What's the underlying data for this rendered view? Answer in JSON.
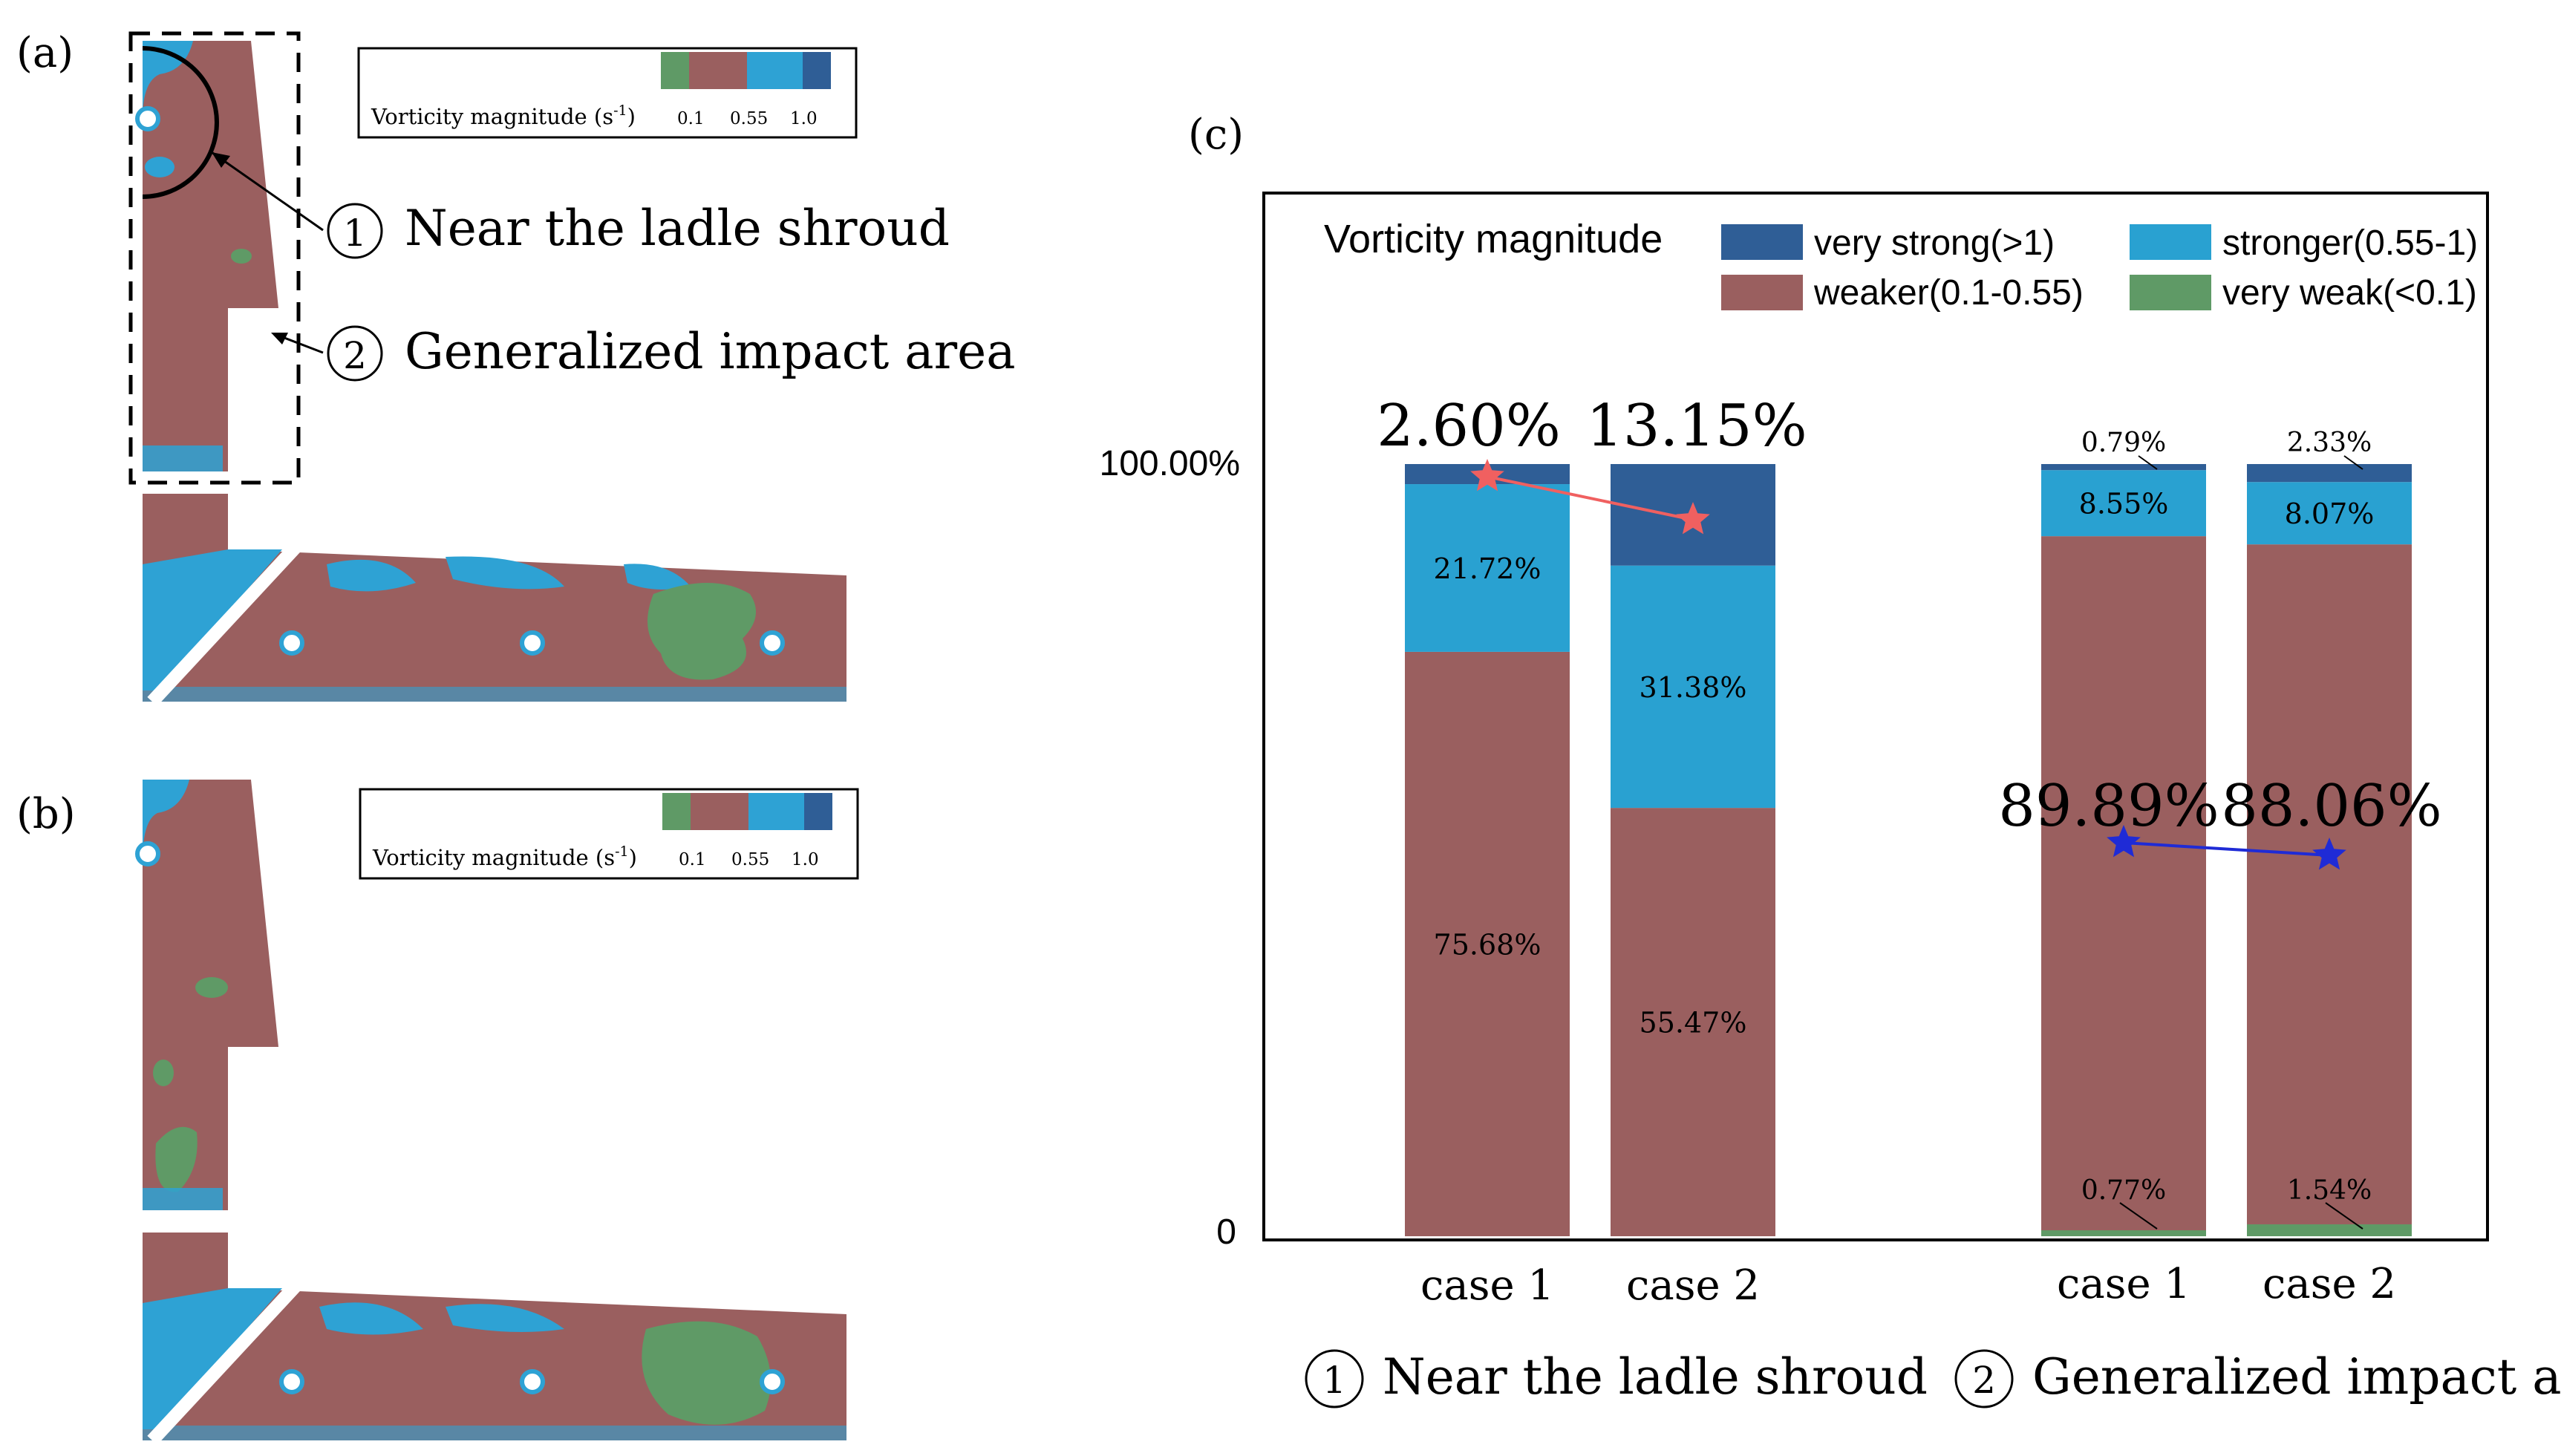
{
  "colors": {
    "very_strong": "#2f5e96",
    "stronger": "#29a1d1",
    "weaker": "#9a5f5f",
    "very_weak": "#5f9a66",
    "field_blue": "#2ea2d4",
    "red_line": "#f06060",
    "blue_line": "#1f2bd6",
    "axis": "#000000"
  },
  "panel_a": {
    "label": "(a)",
    "legend_title": "Vorticity magnitude (s",
    "legend_sup": "-1",
    "legend_close": ")",
    "ticks": [
      "0.1",
      "0.55",
      "1.0"
    ],
    "annotation_1_num": "1",
    "annotation_1_text": "Near the ladle shroud",
    "annotation_2_num": "2",
    "annotation_2_text": "Generalized impact area"
  },
  "panel_b": {
    "label": "(b)",
    "legend_title": "Vorticity magnitude (s",
    "legend_sup": "-1",
    "legend_close": ")",
    "ticks": [
      "0.1",
      "0.55",
      "1.0"
    ]
  },
  "chart_data": {
    "type": "bar",
    "stacked": true,
    "panel_label": "(c)",
    "legend_title": "Vorticity magnitude",
    "legend_entries": [
      "very strong(>1)",
      "stronger(0.55-1)",
      "weaker(0.1-0.55)",
      "very weak(<0.1)"
    ],
    "y_axis_labels": [
      "100.00%",
      "0"
    ],
    "ylim": [
      0,
      100
    ],
    "groups": [
      {
        "title_num": "1",
        "title": "Near the ladle shroud",
        "bars": [
          {
            "category": "case 1",
            "very_weak": 0,
            "weaker": 75.68,
            "stronger": 21.72,
            "very_strong": 2.6,
            "labels": {
              "weaker": "75.68%",
              "stronger": "21.72%",
              "very_strong": "2.60%"
            }
          },
          {
            "category": "case 2",
            "very_weak": 0,
            "weaker": 55.47,
            "stronger": 31.38,
            "very_strong": 13.15,
            "labels": {
              "weaker": "55.47%",
              "stronger": "31.38%",
              "very_strong": "13.15%"
            }
          }
        ]
      },
      {
        "title_num": "2",
        "title": "Generalized impact area",
        "bars": [
          {
            "category": "case 1",
            "very_weak": 0.77,
            "weaker": 89.89,
            "stronger": 8.55,
            "very_strong": 0.79,
            "labels": {
              "very_weak": "0.77%",
              "weaker": "89.89%",
              "stronger": "8.55%",
              "very_strong": "0.79%"
            }
          },
          {
            "category": "case 2",
            "very_weak": 1.54,
            "weaker": 88.06,
            "stronger": 8.07,
            "very_strong": 2.33,
            "labels": {
              "very_weak": "1.54%",
              "weaker": "88.06%",
              "stronger": "8.07%",
              "very_strong": "2.33%"
            }
          }
        ]
      }
    ]
  }
}
